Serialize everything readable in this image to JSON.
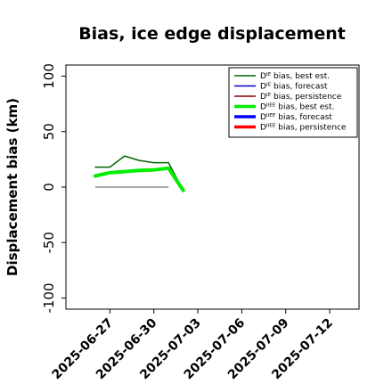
{
  "chart_data": {
    "type": "line",
    "title": "Bias, ice edge displacement",
    "xlabel": "",
    "ylabel": "Displacement bias (km)",
    "xlim": [
      "2025-06-24",
      "2025-07-14"
    ],
    "ylim": [
      -110,
      110
    ],
    "yticks": [
      -100,
      -50,
      0,
      50,
      100
    ],
    "xticks": [
      {
        "date": "2025-06-27",
        "label": "2025-06-27",
        "color": "#000000"
      },
      {
        "date": "2025-06-30",
        "label": "2025-06-30",
        "color": "#000000"
      },
      {
        "date": "2025-07-03",
        "label": "2025-07-03",
        "color": "#1a8a1a"
      },
      {
        "date": "2025-07-06",
        "label": "2025-07-06",
        "color": "#000000"
      },
      {
        "date": "2025-07-09",
        "label": "2025-07-09",
        "color": "#000000"
      },
      {
        "date": "2025-07-12",
        "label": "2025-07-12",
        "color": "#000000"
      }
    ],
    "legend_position": "top-right",
    "series": [
      {
        "key": "die_best",
        "name": "Dᴵᴱ bias, best est.",
        "color": "#006400",
        "width": 1.5,
        "x": [
          "2025-06-26",
          "2025-06-27",
          "2025-06-28",
          "2025-06-29",
          "2025-06-30",
          "2025-07-01",
          "2025-07-02"
        ],
        "y": [
          18,
          18,
          28,
          24,
          22,
          22,
          -3
        ]
      },
      {
        "key": "die_forecast",
        "name": "Dᴵᴱ bias, forecast",
        "color": "#0000cc",
        "width": 1.5,
        "x": [],
        "y": []
      },
      {
        "key": "die_persist",
        "name": "Dᴵᴱ bias, persistence",
        "color": "#800000",
        "width": 1.5,
        "x": [],
        "y": []
      },
      {
        "key": "diiee_best",
        "name": "Dᴵᴵᴱᴱ bias, best est.",
        "color": "#00ee00",
        "width": 4,
        "x": [
          "2025-06-26",
          "2025-06-27",
          "2025-06-28",
          "2025-06-29",
          "2025-06-30",
          "2025-07-01",
          "2025-07-02"
        ],
        "y": [
          10,
          13,
          14,
          15,
          15.5,
          17,
          -3
        ]
      },
      {
        "key": "diiee_forecast",
        "name": "Dᴵᴵᴱᴱ bias, forecast",
        "color": "#0000ff",
        "width": 4,
        "x": [],
        "y": []
      },
      {
        "key": "diiee_persist",
        "name": "Dᴵᴵᴱᴱ bias, persistence",
        "color": "#ff0000",
        "width": 4,
        "x": [],
        "y": []
      }
    ],
    "reference_line": {
      "y": 0,
      "x": [
        "2025-06-26",
        "2025-07-01"
      ],
      "color": "#555555"
    }
  }
}
